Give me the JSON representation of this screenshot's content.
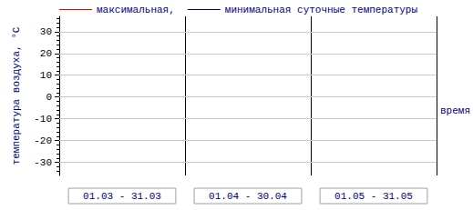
{
  "chart_data": {
    "type": "line",
    "x_label": "время",
    "y_label": "температура воздуха, °C",
    "categories": [
      "01.03 - 31.03",
      "01.04 - 30.04",
      "01.05 - 31.05"
    ],
    "series": [
      {
        "name": "максимальная,",
        "color": "#ff0000",
        "values": [
          null,
          null,
          null
        ]
      },
      {
        "name": "минимальная суточные температуры",
        "color": "#000080",
        "values": [
          null,
          null,
          null
        ]
      }
    ],
    "ylim": [
      -36,
      37
    ],
    "yticks": [
      -30,
      -20,
      -10,
      0,
      10,
      20,
      30
    ],
    "grid": true,
    "legend": "top"
  }
}
